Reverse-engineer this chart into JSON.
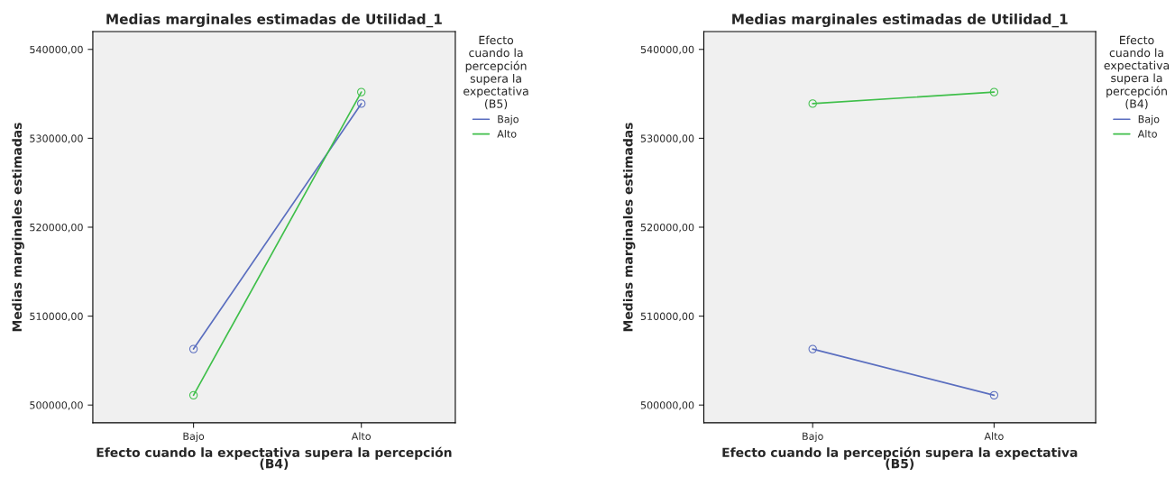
{
  "chart_data": [
    {
      "type": "line",
      "title": "Medias marginales estimadas de Utilidad_1",
      "xlabel": "Efecto cuando la expectativa supera la percepción\n(B4)",
      "ylabel": "Medias marginales estimadas",
      "legend_title": "Efecto\ncuando la\npercepción\nsupera la\nexpectativa\n(B5)",
      "categories": [
        "Bajo",
        "Alto"
      ],
      "series": [
        {
          "name": "Bajo",
          "color": "#5a6ebf",
          "values": [
            506300,
            533900
          ]
        },
        {
          "name": "Alto",
          "color": "#3fbf4a",
          "values": [
            501100,
            535200
          ]
        }
      ],
      "ylim": [
        498000,
        542000
      ],
      "yticks": [
        {
          "value": 500000,
          "label": "500000,00"
        },
        {
          "value": 510000,
          "label": "510000,00"
        },
        {
          "value": 520000,
          "label": "520000,00"
        },
        {
          "value": 530000,
          "label": "530000,00"
        },
        {
          "value": 540000,
          "label": "540000,00"
        }
      ],
      "marker": "circle",
      "legend": "top right",
      "grid": false
    },
    {
      "type": "line",
      "title": "Medias marginales estimadas de Utilidad_1",
      "xlabel": "Efecto cuando la percepción supera la expectativa\n(B5)",
      "ylabel": "Medias marginales estimadas",
      "legend_title": "Efecto\ncuando la\nexpectativa\nsupera la\npercepción\n(B4)",
      "categories": [
        "Bajo",
        "Alto"
      ],
      "series": [
        {
          "name": "Bajo",
          "color": "#5a6ebf",
          "values": [
            506300,
            501100
          ]
        },
        {
          "name": "Alto",
          "color": "#3fbf4a",
          "values": [
            533900,
            535200
          ]
        }
      ],
      "ylim": [
        498000,
        542000
      ],
      "yticks": [
        {
          "value": 500000,
          "label": "500000,00"
        },
        {
          "value": 510000,
          "label": "510000,00"
        },
        {
          "value": 520000,
          "label": "520000,00"
        },
        {
          "value": 530000,
          "label": "530000,00"
        },
        {
          "value": 540000,
          "label": "540000,00"
        }
      ],
      "marker": "circle",
      "legend": "top right",
      "grid": false
    }
  ]
}
